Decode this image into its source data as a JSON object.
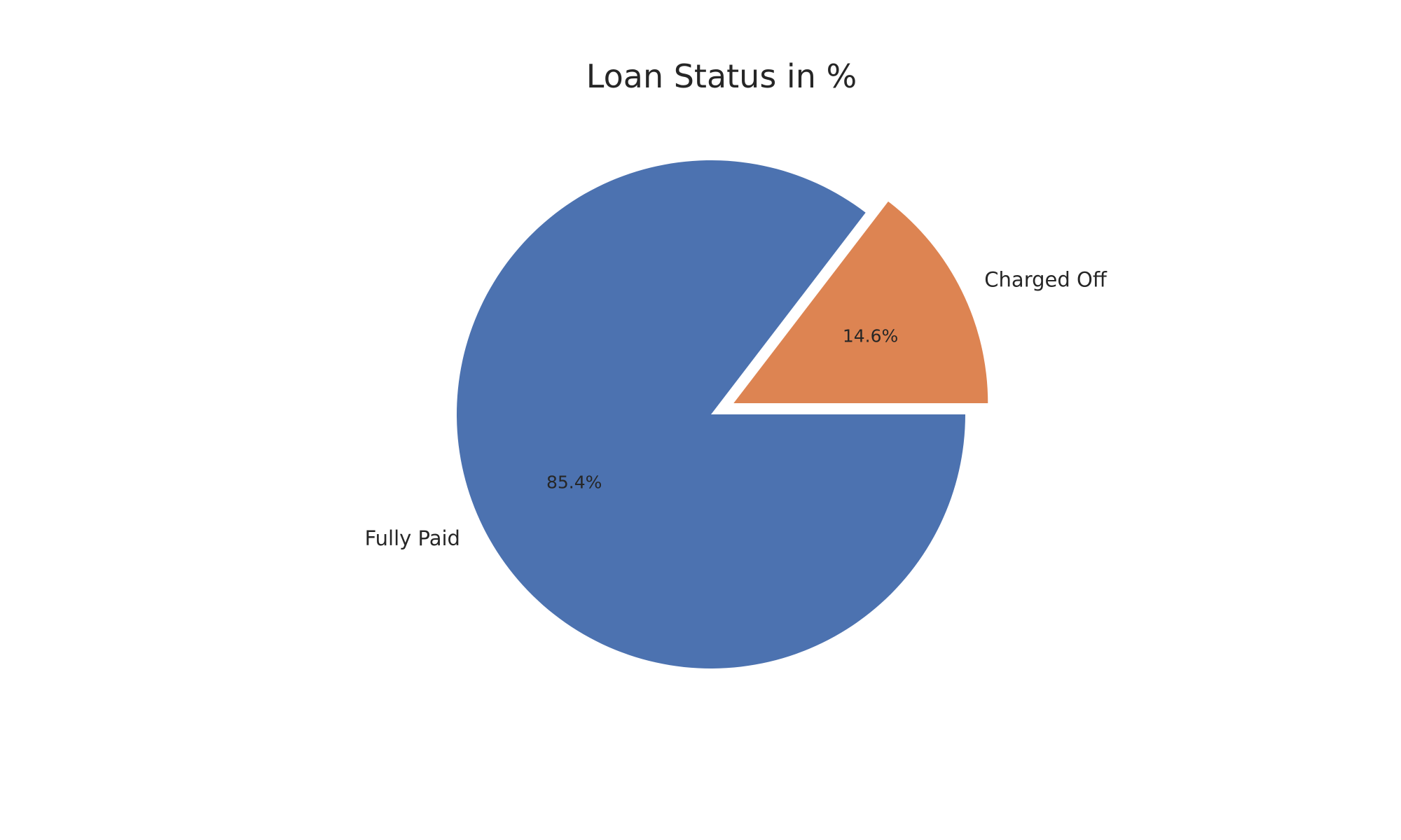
{
  "chart_data": {
    "type": "pie",
    "title": "Loan Status in %",
    "slices": [
      {
        "label": "Fully Paid",
        "value": 85.4,
        "pct_label": "85.4%",
        "color": "#4c72b0",
        "exploded": false
      },
      {
        "label": "Charged Off",
        "value": 14.6,
        "pct_label": "14.6%",
        "color": "#dd8452",
        "exploded": true
      }
    ],
    "start_angle": "clockwise from 3 o'clock",
    "legend": "none"
  }
}
